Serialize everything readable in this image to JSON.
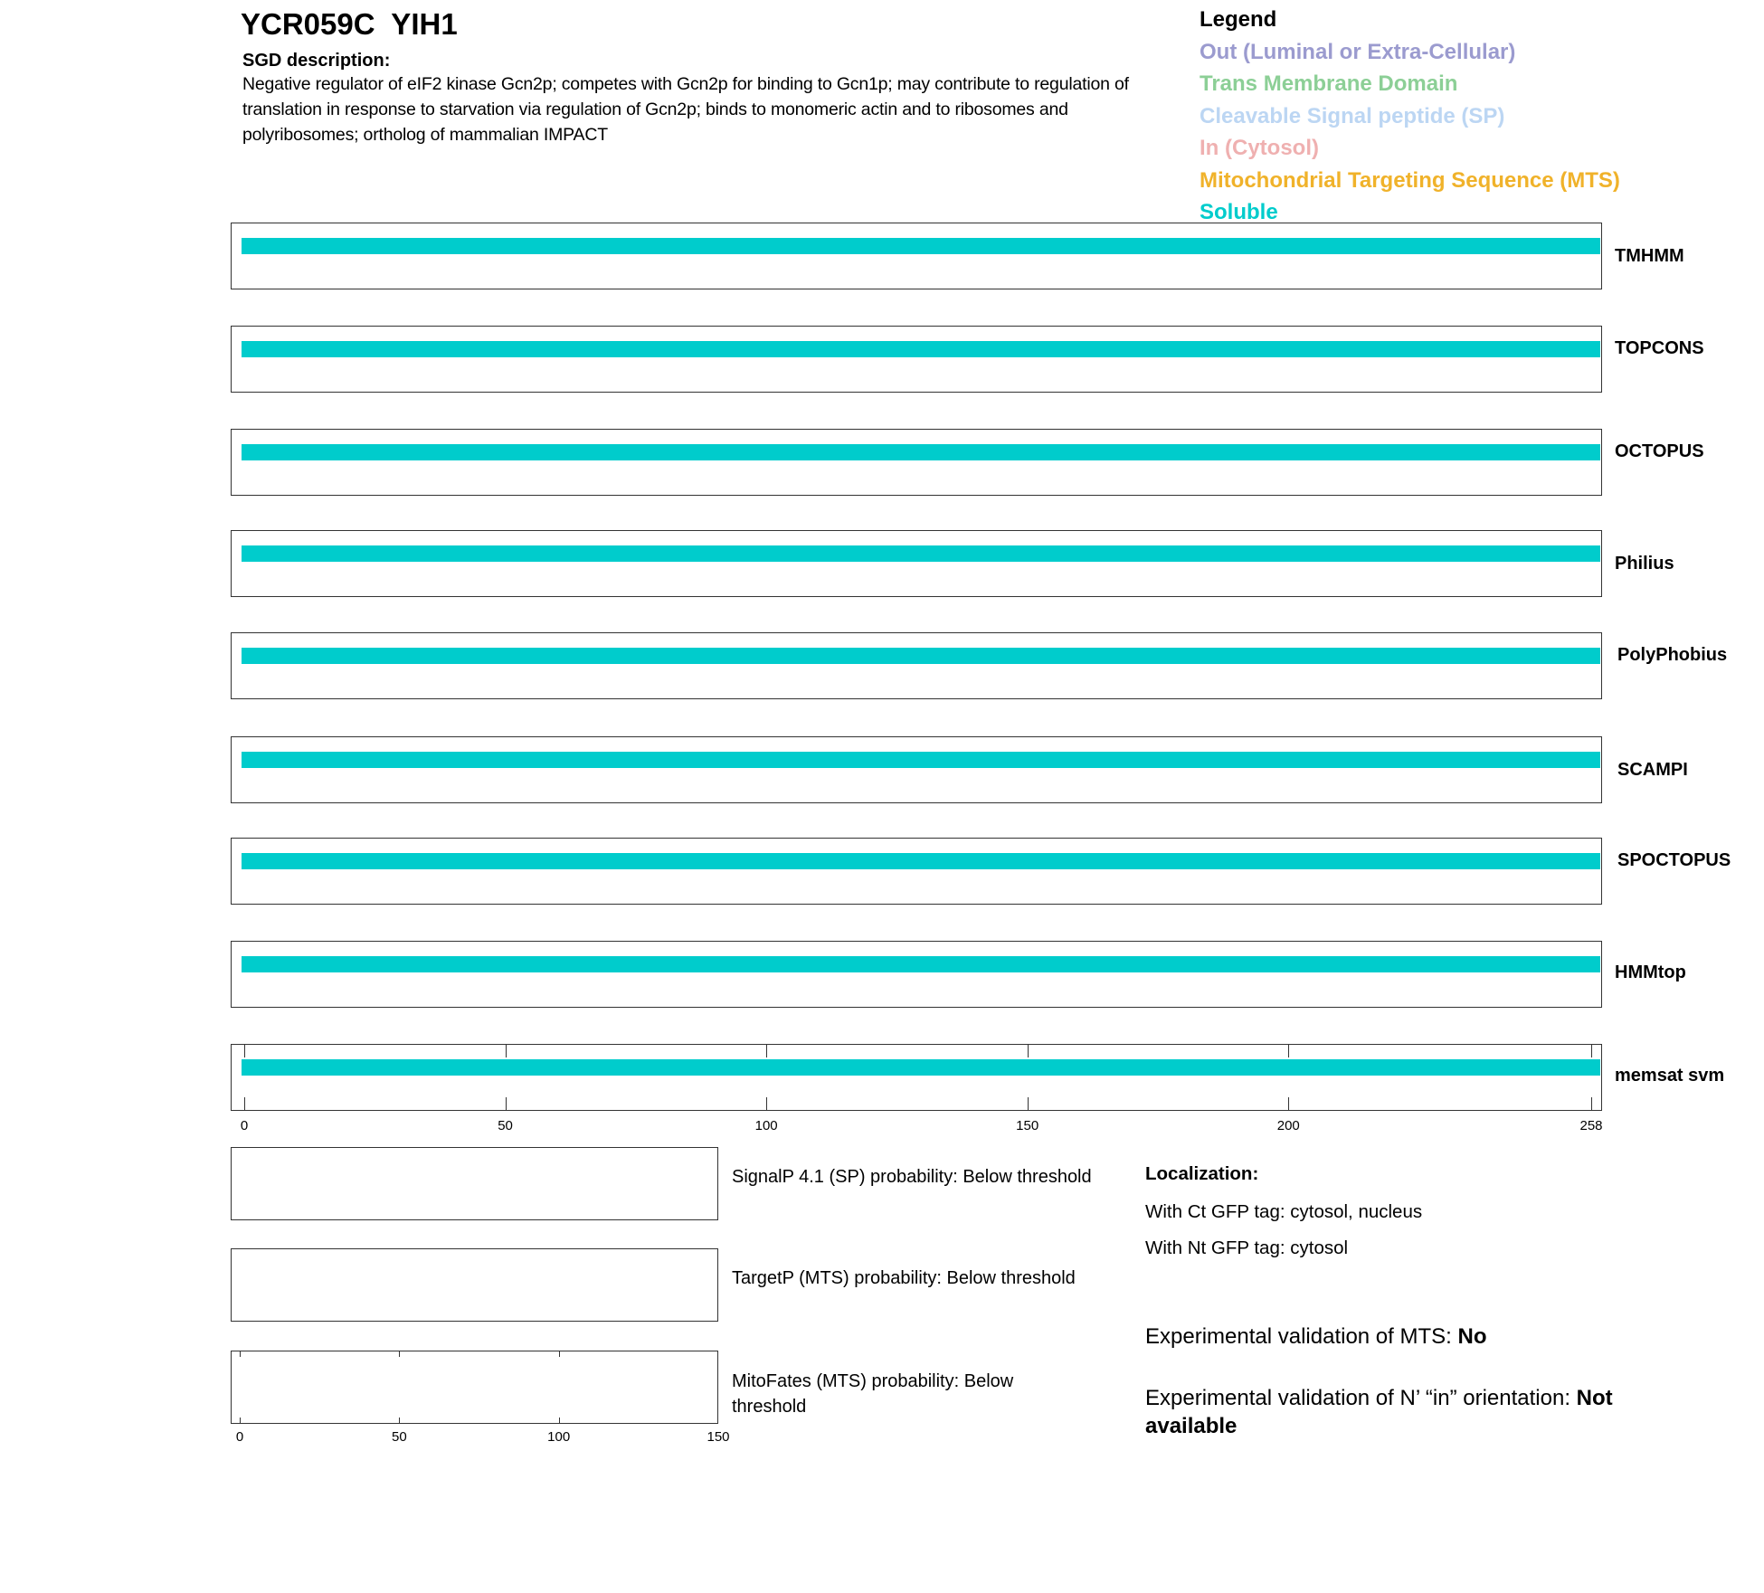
{
  "header": {
    "title": "YCR059C  YIH1",
    "description_heading": "SGD description:",
    "description": "Negative regulator of eIF2 kinase Gcn2p; competes with Gcn2p for binding to Gcn1p; may contribute to regulation of translation in response to starvation via regulation of Gcn2p; binds to monomeric actin and to ribosomes and polyribosomes; ortholog of mammalian IMPACT"
  },
  "legend": {
    "title": "Legend",
    "items": [
      {
        "label": "Out (Luminal or Extra-Cellular)",
        "color": "#9b9bcf"
      },
      {
        "label": "Trans Membrane Domain",
        "color": "#8ccf96"
      },
      {
        "label": "Cleavable Signal peptide (SP)",
        "color": "#bcd6f3"
      },
      {
        "label": "In (Cytosol)",
        "color": "#efb0b0"
      },
      {
        "label": "Mitochondrial Targeting Sequence (MTS)",
        "color": "#f0b22a"
      },
      {
        "label": "Soluble",
        "color": "#00cccc"
      }
    ]
  },
  "chart_data": [
    {
      "type": "bar",
      "orientation": "horizontal-track",
      "xlim": [
        0,
        258
      ],
      "x_ticks": [
        "0",
        "50",
        "100",
        "150",
        "200",
        "258"
      ],
      "x_tick_values": [
        0,
        50,
        100,
        150,
        200,
        258
      ],
      "tracks": [
        {
          "name": "TMHMM",
          "segments": [
            {
              "type": "Soluble",
              "start": 0,
              "end": 258
            }
          ]
        },
        {
          "name": "TOPCONS",
          "segments": [
            {
              "type": "Soluble",
              "start": 0,
              "end": 258
            }
          ]
        },
        {
          "name": "OCTOPUS",
          "segments": [
            {
              "type": "Soluble",
              "start": 0,
              "end": 258
            }
          ]
        },
        {
          "name": "Philius",
          "segments": [
            {
              "type": "Soluble",
              "start": 0,
              "end": 258
            }
          ]
        },
        {
          "name": "PolyPhobius",
          "segments": [
            {
              "type": "Soluble",
              "start": 0,
              "end": 258
            }
          ]
        },
        {
          "name": "SCAMPI",
          "segments": [
            {
              "type": "Soluble",
              "start": 0,
              "end": 258
            }
          ]
        },
        {
          "name": "SPOCTOPUS",
          "segments": [
            {
              "type": "Soluble",
              "start": 0,
              "end": 258
            }
          ]
        },
        {
          "name": "HMMtop",
          "segments": [
            {
              "type": "Soluble",
              "start": 0,
              "end": 258
            }
          ]
        },
        {
          "name": "memsat svm",
          "segments": [
            {
              "type": "Soluble",
              "start": 0,
              "end": 258
            }
          ]
        }
      ]
    },
    {
      "type": "line",
      "xlim": [
        0,
        150
      ],
      "x_ticks": [
        "0",
        "50",
        "100",
        "150"
      ],
      "x_tick_values": [
        0,
        50,
        100,
        150
      ],
      "panels": [
        {
          "text": "SignalP 4.1 (SP) probability: Below threshold"
        },
        {
          "text": "TargetP (MTS) probability: Below threshold"
        },
        {
          "text": "MitoFates (MTS) probability: Below threshold"
        }
      ]
    }
  ],
  "localization": {
    "heading": "Localization:",
    "ct": "With Ct GFP tag: cytosol, nucleus",
    "nt": "With Nt GFP tag: cytosol",
    "mts_label": "Experimental validation of MTS: ",
    "mts_value": "No",
    "orient_label": "Experimental validation of N’ “in” orientation: ",
    "orient_value": "Not available"
  }
}
